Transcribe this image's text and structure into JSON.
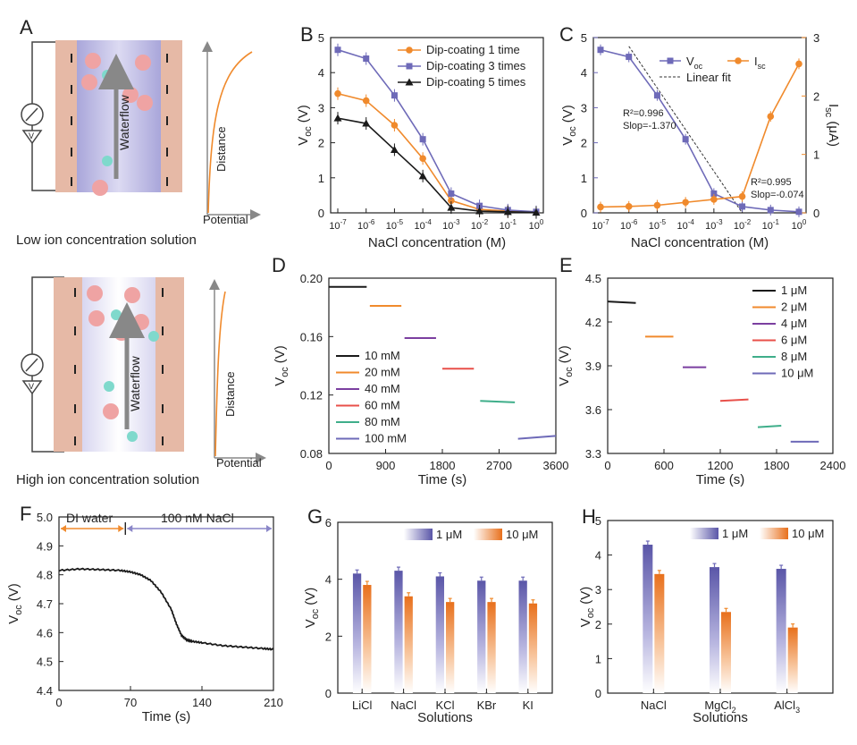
{
  "panels": {
    "A": {
      "letter": "A",
      "top_caption": "Low ion concentration solution",
      "bottom_caption": "High ion concentration solution",
      "flow_label": "Waterflow",
      "meter_label": "V",
      "plot_ylabel": "Distance",
      "plot_xlabel": "Potential"
    }
  },
  "colors": {
    "purple": "#6e6ab8",
    "orange": "#f08a2c",
    "black": "#1a1a1a",
    "red": "#e8504a",
    "green": "#3fae8a",
    "violet": "#7b3fa0",
    "tube_wall": "#e6b9a6",
    "tube_inner": "#c6c3e6",
    "ion_big": "#efa3a3",
    "ion_small": "#7fd9cc"
  },
  "chart_data": [
    {
      "id": "B",
      "letter": "B",
      "type": "line",
      "ylabel_main": "V",
      "ylabel_sub": "oc",
      "ylabel_unit": " (V)",
      "xlabel": "NaCl concentration (M)",
      "ylim": [
        0,
        5
      ],
      "yticks": [
        "0",
        "1",
        "2",
        "3",
        "4",
        "5"
      ],
      "categories": [
        "-7",
        "-6",
        "-5",
        "-4",
        "-3",
        "-2",
        "-1",
        "0"
      ],
      "legend_position": "top-right",
      "series": [
        {
          "name": "Dip-coating 1 time",
          "color": "#f08a2c",
          "marker": "circle",
          "values": [
            3.4,
            3.2,
            2.5,
            1.55,
            0.35,
            0.1,
            0.05,
            0.02
          ]
        },
        {
          "name": "Dip-coating 3 times",
          "color": "#6e6ab8",
          "marker": "square",
          "values": [
            4.65,
            4.4,
            3.35,
            2.1,
            0.55,
            0.2,
            0.08,
            0.03
          ]
        },
        {
          "name": "Dip-coating 5 times",
          "color": "#1a1a1a",
          "marker": "triangle",
          "values": [
            2.7,
            2.55,
            1.8,
            1.05,
            0.15,
            0.05,
            0.03,
            0.01
          ]
        }
      ]
    },
    {
      "id": "C",
      "letter": "C",
      "type": "line",
      "ylabel_main": "V",
      "ylabel_sub": "oc",
      "ylabel_unit": " (V)",
      "y2label_main": "I",
      "y2label_sub": "sc",
      "y2label_unit": " (μA)",
      "xlabel": "NaCl concentration (M)",
      "ylim": [
        0,
        5
      ],
      "y2lim": [
        0,
        3
      ],
      "yticks": [
        "0",
        "1",
        "2",
        "3",
        "4",
        "5"
      ],
      "y2ticks": [
        "0",
        "1",
        "2",
        "3"
      ],
      "categories": [
        "-7",
        "-6",
        "-5",
        "-4",
        "-3",
        "-2",
        "-1",
        "0"
      ],
      "legend_position": "top-right",
      "legend": [
        {
          "main": "V",
          "sub": "oc",
          "color": "#6e6ab8"
        },
        {
          "main": "I",
          "sub": "sc",
          "color": "#f08a2c"
        }
      ],
      "linear_fit_label": "Linear fit",
      "series": [
        {
          "name": "Voc",
          "axis": "left",
          "color": "#6e6ab8",
          "values": [
            4.65,
            4.45,
            3.35,
            2.1,
            0.55,
            0.18,
            0.08,
            0.03
          ]
        },
        {
          "name": "Isc",
          "axis": "right",
          "color": "#f08a2c",
          "values": [
            0.1,
            0.11,
            0.13,
            0.18,
            0.23,
            0.28,
            1.65,
            2.55
          ]
        }
      ],
      "annotations": {
        "fit1_r2": "R²=0.996",
        "fit1_slope": "Slop=-1.370",
        "fit2_r2": "R²=0.995",
        "fit2_slope": "Slop=-0.074"
      }
    },
    {
      "id": "D",
      "letter": "D",
      "type": "line",
      "ylabel_main": "V",
      "ylabel_sub": "oc",
      "ylabel_unit": " (V)",
      "xlabel": "Time (s)",
      "xlim": [
        0,
        3600
      ],
      "ylim": [
        0.08,
        0.2
      ],
      "xticks": [
        "0",
        "900",
        "1800",
        "2700",
        "3600"
      ],
      "yticks": [
        "0.08",
        "0.12",
        "0.16",
        "0.20"
      ],
      "legend_position": "bottom-left",
      "series": [
        {
          "name": "10 mM",
          "color": "#1a1a1a",
          "x": [
            0,
            600
          ],
          "y": [
            0.194,
            0.194
          ]
        },
        {
          "name": "20 mM",
          "color": "#f08a2c",
          "x": [
            650,
            1150
          ],
          "y": [
            0.181,
            0.181
          ]
        },
        {
          "name": "40 mM",
          "color": "#7b3fa0",
          "x": [
            1200,
            1700
          ],
          "y": [
            0.159,
            0.159
          ]
        },
        {
          "name": "60 mM",
          "color": "#e8504a",
          "x": [
            1800,
            2300
          ],
          "y": [
            0.138,
            0.138
          ]
        },
        {
          "name": "80 mM",
          "color": "#3fae8a",
          "x": [
            2400,
            2950
          ],
          "y": [
            0.116,
            0.115
          ]
        },
        {
          "name": "100 mM",
          "color": "#6e6ab8",
          "x": [
            3000,
            3600
          ],
          "y": [
            0.09,
            0.092
          ]
        }
      ]
    },
    {
      "id": "E",
      "letter": "E",
      "type": "line",
      "ylabel_main": "V",
      "ylabel_sub": "oc",
      "ylabel_unit": " (V)",
      "xlabel": "Time (s)",
      "xlim": [
        0,
        2400
      ],
      "ylim": [
        3.3,
        4.5
      ],
      "xticks": [
        "0",
        "600",
        "1200",
        "1800",
        "2400"
      ],
      "yticks": [
        "3.3",
        "3.6",
        "3.9",
        "4.2",
        "4.5"
      ],
      "legend_position": "top-right",
      "series": [
        {
          "name": "1 μM",
          "color": "#1a1a1a",
          "x": [
            0,
            300
          ],
          "y": [
            4.34,
            4.33
          ]
        },
        {
          "name": "2 μM",
          "color": "#f08a2c",
          "x": [
            400,
            700
          ],
          "y": [
            4.1,
            4.1
          ]
        },
        {
          "name": "4 μM",
          "color": "#7b3fa0",
          "x": [
            800,
            1050
          ],
          "y": [
            3.89,
            3.89
          ]
        },
        {
          "name": "6 μM",
          "color": "#e8504a",
          "x": [
            1200,
            1500
          ],
          "y": [
            3.66,
            3.67
          ]
        },
        {
          "name": "8 μM",
          "color": "#3fae8a",
          "x": [
            1600,
            1850
          ],
          "y": [
            3.48,
            3.49
          ]
        },
        {
          "name": "10 μM",
          "color": "#6e6ab8",
          "x": [
            1950,
            2250
          ],
          "y": [
            3.38,
            3.38
          ]
        }
      ]
    },
    {
      "id": "F",
      "letter": "F",
      "type": "line",
      "ylabel_main": "V",
      "ylabel_sub": "oc",
      "ylabel_unit": " (V)",
      "xlabel": "Time (s)",
      "xlim": [
        0,
        210
      ],
      "ylim": [
        4.4,
        5.0
      ],
      "xticks": [
        "0",
        "70",
        "140",
        "210"
      ],
      "yticks": [
        "4.4",
        "4.5",
        "4.6",
        "4.7",
        "4.8",
        "4.9",
        "5.0"
      ],
      "annotations": {
        "left": "DI water",
        "right": "100 nM NaCl",
        "switch_time": 65
      },
      "series": [
        {
          "name": "Voc",
          "color": "#1a1a1a",
          "x": [
            0,
            20,
            40,
            60,
            70,
            80,
            90,
            100,
            110,
            115,
            120,
            125,
            130,
            140,
            160,
            180,
            200,
            210
          ],
          "y": [
            4.815,
            4.82,
            4.818,
            4.815,
            4.81,
            4.8,
            4.78,
            4.74,
            4.68,
            4.63,
            4.59,
            4.575,
            4.57,
            4.565,
            4.555,
            4.55,
            4.545,
            4.542
          ]
        }
      ]
    },
    {
      "id": "G",
      "letter": "G",
      "type": "bar",
      "ylabel_main": "V",
      "ylabel_sub": "oc",
      "ylabel_unit": " (V)",
      "xlabel": "Solutions",
      "ylim": [
        0,
        6
      ],
      "yticks": [
        "0",
        "2",
        "4",
        "6"
      ],
      "categories": [
        "LiCl",
        "NaCl",
        "KCl",
        "KBr",
        "KI"
      ],
      "legend_position": "top-right",
      "series": [
        {
          "name": "1 μM",
          "color": "#6e6ab8",
          "values": [
            4.2,
            4.3,
            4.1,
            3.95,
            3.95
          ]
        },
        {
          "name": "10 μM",
          "color": "#f08a2c",
          "values": [
            3.8,
            3.4,
            3.2,
            3.2,
            3.15
          ]
        }
      ]
    },
    {
      "id": "H",
      "letter": "H",
      "type": "bar",
      "ylabel_main": "V",
      "ylabel_sub": "oc",
      "ylabel_unit": " (V)",
      "xlabel": "Solutions",
      "ylim": [
        0,
        5
      ],
      "yticks": [
        "0",
        "1",
        "2",
        "3",
        "4",
        "5"
      ],
      "categories": [
        {
          "main": "NaCl",
          "sub": ""
        },
        {
          "main": "MgCl",
          "sub": "2"
        },
        {
          "main": "AlCl",
          "sub": "3"
        }
      ],
      "legend_position": "top-right",
      "series": [
        {
          "name": "1 μM",
          "color": "#6e6ab8",
          "values": [
            4.3,
            3.65,
            3.6
          ]
        },
        {
          "name": "10 μM",
          "color": "#f08a2c",
          "values": [
            3.45,
            2.35,
            1.9
          ]
        }
      ]
    }
  ]
}
